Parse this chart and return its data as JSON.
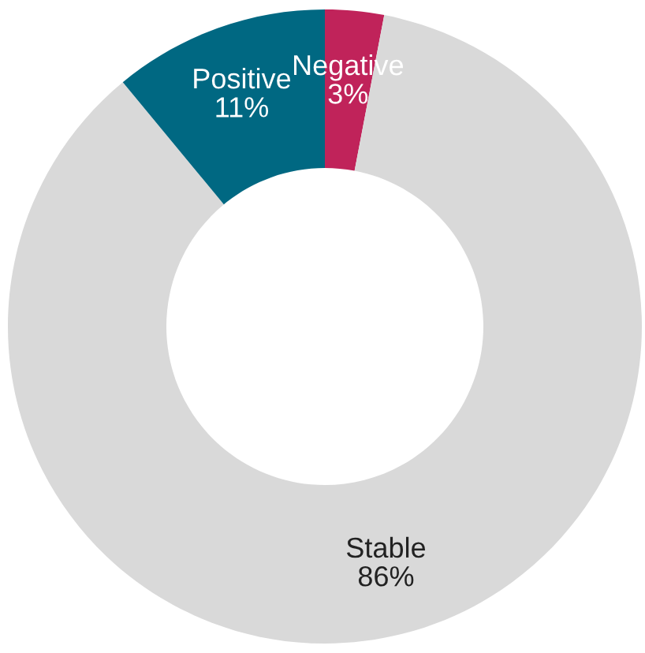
{
  "chart_data": {
    "type": "donut",
    "categories": [
      "Negative",
      "Stable",
      "Positive"
    ],
    "values": [
      3,
      86,
      11
    ],
    "value_labels": [
      "3%",
      "86%",
      "11%"
    ],
    "colors": [
      "#c0235a",
      "#d9d9d9",
      "#006882"
    ],
    "legend": false
  }
}
